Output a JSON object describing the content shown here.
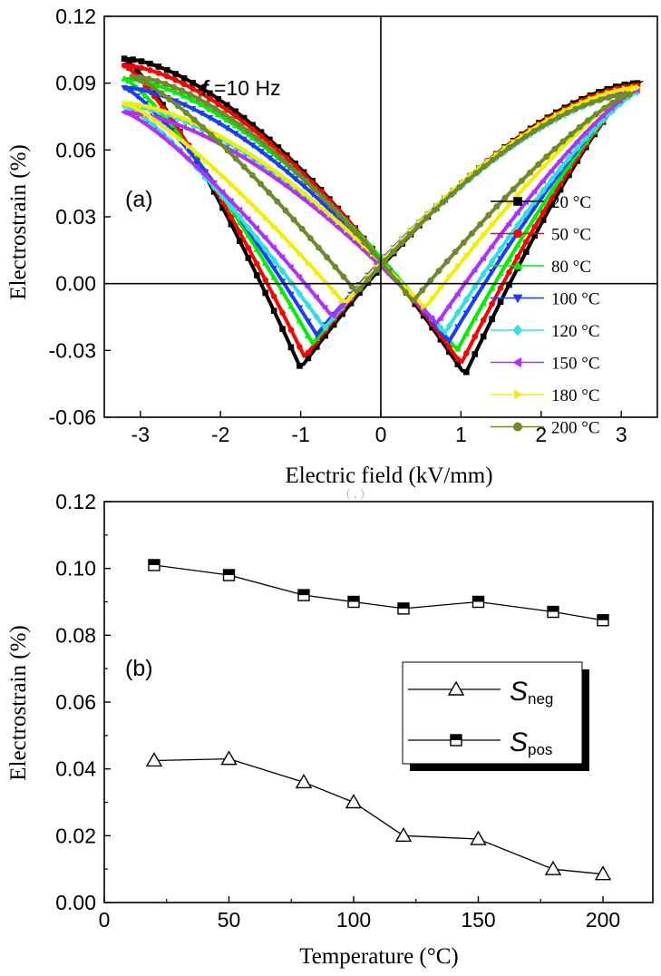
{
  "chart_data": [
    {
      "id": "a",
      "type": "line",
      "panel_label": "(a)",
      "annotation": {
        "italic": "f",
        "rest": " =10 Hz"
      },
      "xlabel": "Electric field (kV/mm)",
      "ylabel": "Electrostrain (%)",
      "xlim": [
        -3.45,
        3.45
      ],
      "ylim": [
        -0.06,
        0.12
      ],
      "xticks": [
        -3,
        -2,
        -1,
        0,
        1,
        2,
        3
      ],
      "xtick_labels": [
        "-3",
        "-2",
        "-1",
        "0",
        "1",
        "2",
        "3"
      ],
      "yticks": [
        -0.06,
        -0.03,
        0.0,
        0.03,
        0.06,
        0.09,
        0.12
      ],
      "ytick_labels": [
        "-0.06",
        "-0.03",
        "0.00",
        "0.03",
        "0.06",
        "0.09",
        "0.12"
      ],
      "series": [
        {
          "name": "20 °C",
          "label_main": "20 ",
          "label_unit": "°C",
          "color": "#000000",
          "marker": "square",
          "Emax": 3.2,
          "Smax_neg": 0.101,
          "Smax_pos": 0.09,
          "Smin_neg": -0.038,
          "Smin_pos": -0.041,
          "Ec_neg": -1.0,
          "Ec_pos": 1.05
        },
        {
          "name": "50 °C",
          "label_main": "50 ",
          "label_unit": "°C",
          "color": "#ff0000",
          "marker": "circle",
          "Emax": 3.2,
          "Smax_neg": 0.098,
          "Smax_pos": 0.089,
          "Smin_neg": -0.033,
          "Smin_pos": -0.036,
          "Ec_neg": -0.95,
          "Ec_pos": 1.0
        },
        {
          "name": "80 °C",
          "label_main": "80 ",
          "label_unit": "°C",
          "color": "#00ee00",
          "marker": "triangle",
          "Emax": 3.2,
          "Smax_neg": 0.092,
          "Smax_pos": 0.088,
          "Smin_neg": -0.027,
          "Smin_pos": -0.03,
          "Ec_neg": -0.85,
          "Ec_pos": 0.95
        },
        {
          "name": "100 °C",
          "label_main": "100 ",
          "label_unit": "°C",
          "color": "#1a3cff",
          "marker": "triangle-down",
          "Emax": 3.2,
          "Smax_neg": 0.088,
          "Smax_pos": 0.087,
          "Smin_neg": -0.023,
          "Smin_pos": -0.026,
          "Ec_neg": -0.8,
          "Ec_pos": 0.85
        },
        {
          "name": "120 °C",
          "label_main": "120 ",
          "label_unit": "°C",
          "color": "#33e0e0",
          "marker": "diamond",
          "Emax": 3.2,
          "Smax_neg": 0.08,
          "Smax_pos": 0.086,
          "Smin_neg": -0.02,
          "Smin_pos": -0.022,
          "Ec_neg": -0.7,
          "Ec_pos": 0.8
        },
        {
          "name": "150 °C",
          "label_main": "150 ",
          "label_unit": "°C",
          "color": "#b030ff",
          "marker": "triangle-left",
          "Emax": 3.2,
          "Smax_neg": 0.077,
          "Smax_pos": 0.087,
          "Smin_neg": -0.015,
          "Smin_pos": -0.018,
          "Ec_neg": -0.6,
          "Ec_pos": 0.7
        },
        {
          "name": "180 °C",
          "label_main": "180 ",
          "label_unit": "°C",
          "color": "#f0f000",
          "marker": "triangle-right",
          "Emax": 3.2,
          "Smax_neg": 0.081,
          "Smax_pos": 0.088,
          "Smin_neg": -0.009,
          "Smin_pos": -0.011,
          "Ec_neg": -0.45,
          "Ec_pos": 0.55
        },
        {
          "name": "200 °C",
          "label_main": "200 ",
          "label_unit": "°C",
          "color": "#6f8a2c",
          "marker": "hexagon",
          "Emax": 3.1,
          "Smax_neg": 0.093,
          "Smax_pos": 0.085,
          "Smin_neg": -0.004,
          "Smin_pos": -0.008,
          "Ec_neg": -0.3,
          "Ec_pos": 0.4
        }
      ]
    },
    {
      "id": "b",
      "type": "line",
      "panel_label": "(b)",
      "xlabel": "Temperature (°C)",
      "ylabel": "Electrostrain (%)",
      "xlim": [
        0,
        220
      ],
      "ylim": [
        0.0,
        0.12
      ],
      "xticks": [
        0,
        50,
        100,
        150,
        200
      ],
      "xtick_labels": [
        "0",
        "50",
        "100",
        "150",
        "200"
      ],
      "yticks": [
        0.0,
        0.02,
        0.04,
        0.06,
        0.08,
        0.1,
        0.12
      ],
      "ytick_labels": [
        "0.00",
        "0.02",
        "0.04",
        "0.06",
        "0.08",
        "0.10",
        "0.12"
      ],
      "x": [
        20,
        50,
        80,
        100,
        120,
        150,
        180,
        200
      ],
      "series": [
        {
          "name": "S_neg",
          "symbol": "S",
          "subscript": "neg",
          "marker": "open-triangle",
          "values": [
            0.0425,
            0.043,
            0.036,
            0.03,
            0.02,
            0.019,
            0.01,
            0.0085
          ]
        },
        {
          "name": "S_pos",
          "symbol": "S",
          "subscript": "pos",
          "marker": "half-square",
          "values": [
            0.101,
            0.098,
            0.092,
            0.09,
            0.088,
            0.09,
            0.087,
            0.0845
          ]
        }
      ]
    }
  ]
}
